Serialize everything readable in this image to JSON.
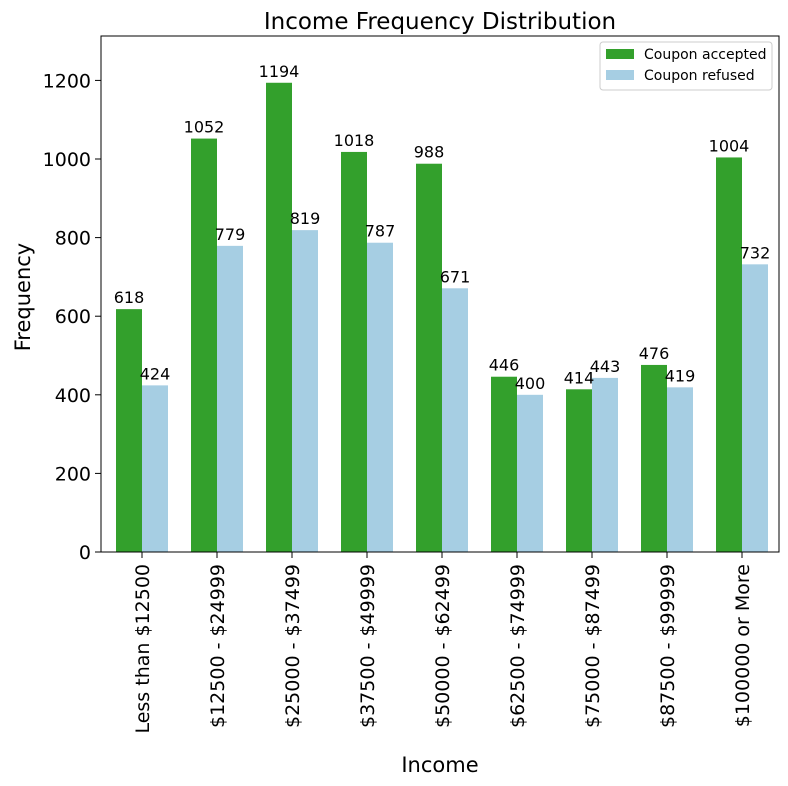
{
  "chart_data": {
    "type": "bar",
    "title": "Income Frequency Distribution",
    "xlabel": "Income",
    "ylabel": "Frequency",
    "ylim": [
      0,
      1313
    ],
    "yticks": [
      0,
      200,
      400,
      600,
      800,
      1000,
      1200
    ],
    "grid": false,
    "legend_position": "top-right",
    "categories": [
      "Less than $12500",
      "$12500 - $24999",
      "$25000 - $37499",
      "$37500 - $49999",
      "$50000 - $62499",
      "$62500 - $74999",
      "$75000 - $87499",
      "$87500 - $99999",
      "$100000 or More"
    ],
    "series": [
      {
        "name": "Coupon accepted",
        "color": "#33a02c",
        "values": [
          618,
          1052,
          1194,
          1018,
          988,
          446,
          414,
          476,
          1004
        ]
      },
      {
        "name": "Coupon refused",
        "color": "#a6cee3",
        "values": [
          424,
          779,
          819,
          787,
          671,
          400,
          443,
          419,
          732
        ]
      }
    ]
  }
}
